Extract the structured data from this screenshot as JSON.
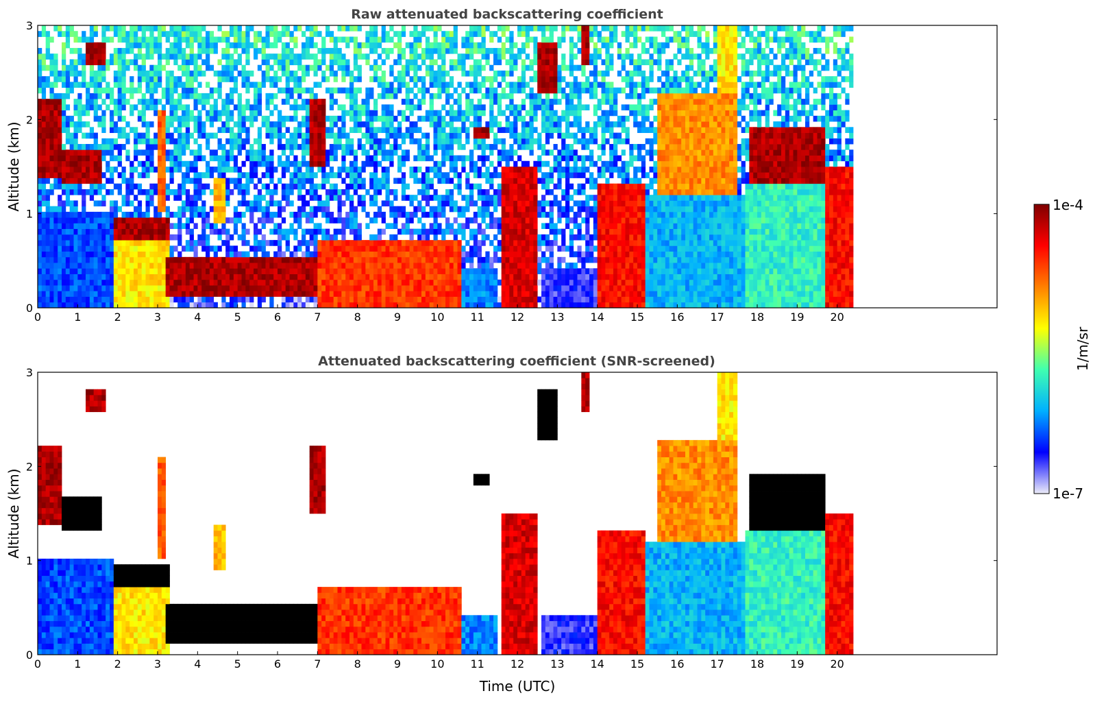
{
  "chart_data": [
    {
      "type": "heatmap",
      "title": "Raw attenuated backscattering coefficient",
      "xlabel": "",
      "ylabel": "Altitude (km)",
      "xlim": [
        0,
        24
      ],
      "ylim": [
        0,
        3
      ],
      "xticks": [
        "0",
        "1",
        "2",
        "3",
        "4",
        "5",
        "6",
        "7",
        "8",
        "9",
        "10",
        "11",
        "12",
        "13",
        "14",
        "15",
        "16",
        "17",
        "18",
        "19",
        "20"
      ],
      "yticks": [
        "0",
        "1",
        "2",
        "3"
      ],
      "data_end_time": 20.4,
      "features": [
        {
          "t0": 0.0,
          "t1": 1.9,
          "h0": 0.0,
          "h1": 1.0,
          "level": 0.2
        },
        {
          "t0": 0.0,
          "t1": 0.6,
          "h0": 1.4,
          "h1": 2.2,
          "level": 0.95
        },
        {
          "t0": 0.6,
          "t1": 1.6,
          "h0": 1.3,
          "h1": 1.7,
          "level": 0.95
        },
        {
          "t0": 1.2,
          "t1": 1.7,
          "h0": 2.6,
          "h1": 2.8,
          "level": 0.95
        },
        {
          "t0": 1.9,
          "t1": 3.3,
          "h0": 0.0,
          "h1": 0.9,
          "level": 0.6
        },
        {
          "t0": 1.9,
          "t1": 3.3,
          "h0": 0.7,
          "h1": 0.95,
          "level": 0.95
        },
        {
          "t0": 3.2,
          "t1": 7.0,
          "h0": 0.15,
          "h1": 0.55,
          "level": 0.95
        },
        {
          "t0": 3.0,
          "t1": 3.2,
          "h0": 1.0,
          "h1": 2.1,
          "level": 0.75
        },
        {
          "t0": 4.4,
          "t1": 4.7,
          "h0": 0.9,
          "h1": 1.4,
          "level": 0.65
        },
        {
          "t0": 6.8,
          "t1": 7.2,
          "h0": 1.5,
          "h1": 2.2,
          "level": 0.95
        },
        {
          "t0": 7.0,
          "t1": 10.6,
          "h0": 0.0,
          "h1": 0.7,
          "level": 0.8
        },
        {
          "t0": 10.6,
          "t1": 11.5,
          "h0": 0.0,
          "h1": 0.4,
          "level": 0.25
        },
        {
          "t0": 10.9,
          "t1": 11.3,
          "h0": 1.8,
          "h1": 1.95,
          "level": 0.95
        },
        {
          "t0": 11.6,
          "t1": 12.5,
          "h0": 0.0,
          "h1": 1.5,
          "level": 0.9
        },
        {
          "t0": 12.5,
          "t1": 13.0,
          "h0": 2.3,
          "h1": 2.8,
          "level": 0.95
        },
        {
          "t0": 12.6,
          "t1": 14.0,
          "h0": 0.0,
          "h1": 0.4,
          "level": 0.12
        },
        {
          "t0": 13.6,
          "t1": 13.75,
          "h0": 2.6,
          "h1": 3.0,
          "level": 0.95
        },
        {
          "t0": 14.0,
          "t1": 15.2,
          "h0": 0.0,
          "h1": 1.3,
          "level": 0.85
        },
        {
          "t0": 15.2,
          "t1": 17.7,
          "h0": 0.0,
          "h1": 1.2,
          "level": 0.3
        },
        {
          "t0": 15.5,
          "t1": 17.5,
          "h0": 1.2,
          "h1": 2.3,
          "level": 0.7
        },
        {
          "t0": 17.0,
          "t1": 17.5,
          "h0": 2.0,
          "h1": 3.0,
          "level": 0.6
        },
        {
          "t0": 17.7,
          "t1": 19.7,
          "h0": 0.0,
          "h1": 1.3,
          "level": 0.4
        },
        {
          "t0": 17.8,
          "t1": 19.7,
          "h0": 1.3,
          "h1": 1.9,
          "level": 0.95
        },
        {
          "t0": 19.7,
          "t1": 20.4,
          "h0": 0.0,
          "h1": 1.5,
          "level": 0.85
        }
      ]
    },
    {
      "type": "heatmap",
      "title": "Attenuated backscattering coefficient (SNR-screened)",
      "xlabel": "Time (UTC)",
      "ylabel": "Altitude (km)",
      "xlim": [
        0,
        24
      ],
      "ylim": [
        0,
        3
      ],
      "xticks": [
        "0",
        "1",
        "2",
        "3",
        "4",
        "5",
        "6",
        "7",
        "8",
        "9",
        "10",
        "11",
        "12",
        "13",
        "14",
        "15",
        "16",
        "17",
        "18",
        "19",
        "20"
      ],
      "yticks": [
        "0",
        "1",
        "2",
        "3"
      ],
      "data_end_time": 20.4,
      "features": [
        {
          "t0": 0.0,
          "t1": 1.9,
          "h0": 0.0,
          "h1": 1.0,
          "level": 0.2
        },
        {
          "t0": 0.0,
          "t1": 0.6,
          "h0": 1.4,
          "h1": 2.2,
          "level": 0.95
        },
        {
          "t0": 0.6,
          "t1": 1.6,
          "h0": 1.3,
          "h1": 1.7,
          "level": 1.0
        },
        {
          "t0": 1.2,
          "t1": 1.7,
          "h0": 2.6,
          "h1": 2.8,
          "level": 0.95
        },
        {
          "t0": 1.9,
          "t1": 3.3,
          "h0": 0.0,
          "h1": 0.9,
          "level": 0.6
        },
        {
          "t0": 1.9,
          "t1": 3.3,
          "h0": 0.7,
          "h1": 0.95,
          "level": 1.0
        },
        {
          "t0": 3.2,
          "t1": 7.0,
          "h0": 0.15,
          "h1": 0.55,
          "level": 1.0
        },
        {
          "t0": 3.0,
          "t1": 3.2,
          "h0": 1.0,
          "h1": 2.1,
          "level": 0.75
        },
        {
          "t0": 4.4,
          "t1": 4.7,
          "h0": 0.9,
          "h1": 1.4,
          "level": 0.65
        },
        {
          "t0": 6.8,
          "t1": 7.2,
          "h0": 1.5,
          "h1": 2.2,
          "level": 0.95
        },
        {
          "t0": 7.0,
          "t1": 10.6,
          "h0": 0.0,
          "h1": 0.7,
          "level": 0.8
        },
        {
          "t0": 10.6,
          "t1": 11.5,
          "h0": 0.0,
          "h1": 0.4,
          "level": 0.25
        },
        {
          "t0": 10.9,
          "t1": 11.3,
          "h0": 1.8,
          "h1": 1.95,
          "level": 1.0
        },
        {
          "t0": 11.6,
          "t1": 12.5,
          "h0": 0.0,
          "h1": 1.5,
          "level": 0.9
        },
        {
          "t0": 12.5,
          "t1": 13.0,
          "h0": 2.3,
          "h1": 2.8,
          "level": 1.0
        },
        {
          "t0": 12.6,
          "t1": 14.0,
          "h0": 0.0,
          "h1": 0.4,
          "level": 0.12
        },
        {
          "t0": 13.6,
          "t1": 13.75,
          "h0": 2.6,
          "h1": 3.0,
          "level": 0.95
        },
        {
          "t0": 14.0,
          "t1": 15.2,
          "h0": 0.0,
          "h1": 1.3,
          "level": 0.85
        },
        {
          "t0": 15.2,
          "t1": 17.7,
          "h0": 0.0,
          "h1": 1.2,
          "level": 0.3
        },
        {
          "t0": 15.5,
          "t1": 17.5,
          "h0": 1.2,
          "h1": 2.3,
          "level": 0.7
        },
        {
          "t0": 17.0,
          "t1": 17.5,
          "h0": 2.0,
          "h1": 3.0,
          "level": 0.6
        },
        {
          "t0": 17.7,
          "t1": 19.7,
          "h0": 0.0,
          "h1": 1.3,
          "level": 0.4
        },
        {
          "t0": 17.8,
          "t1": 19.7,
          "h0": 1.3,
          "h1": 1.9,
          "level": 1.0
        },
        {
          "t0": 19.7,
          "t1": 20.4,
          "h0": 0.0,
          "h1": 1.5,
          "level": 0.85
        }
      ]
    }
  ],
  "colorbar": {
    "label": "1/m/sr",
    "max_label": "1e-4",
    "min_label": "1e-7",
    "colormap": "jet",
    "stops": [
      "#ececf8",
      "#0000ff",
      "#00b0ff",
      "#40ffb0",
      "#ffff00",
      "#ff8000",
      "#ff0000",
      "#7f0000"
    ]
  }
}
